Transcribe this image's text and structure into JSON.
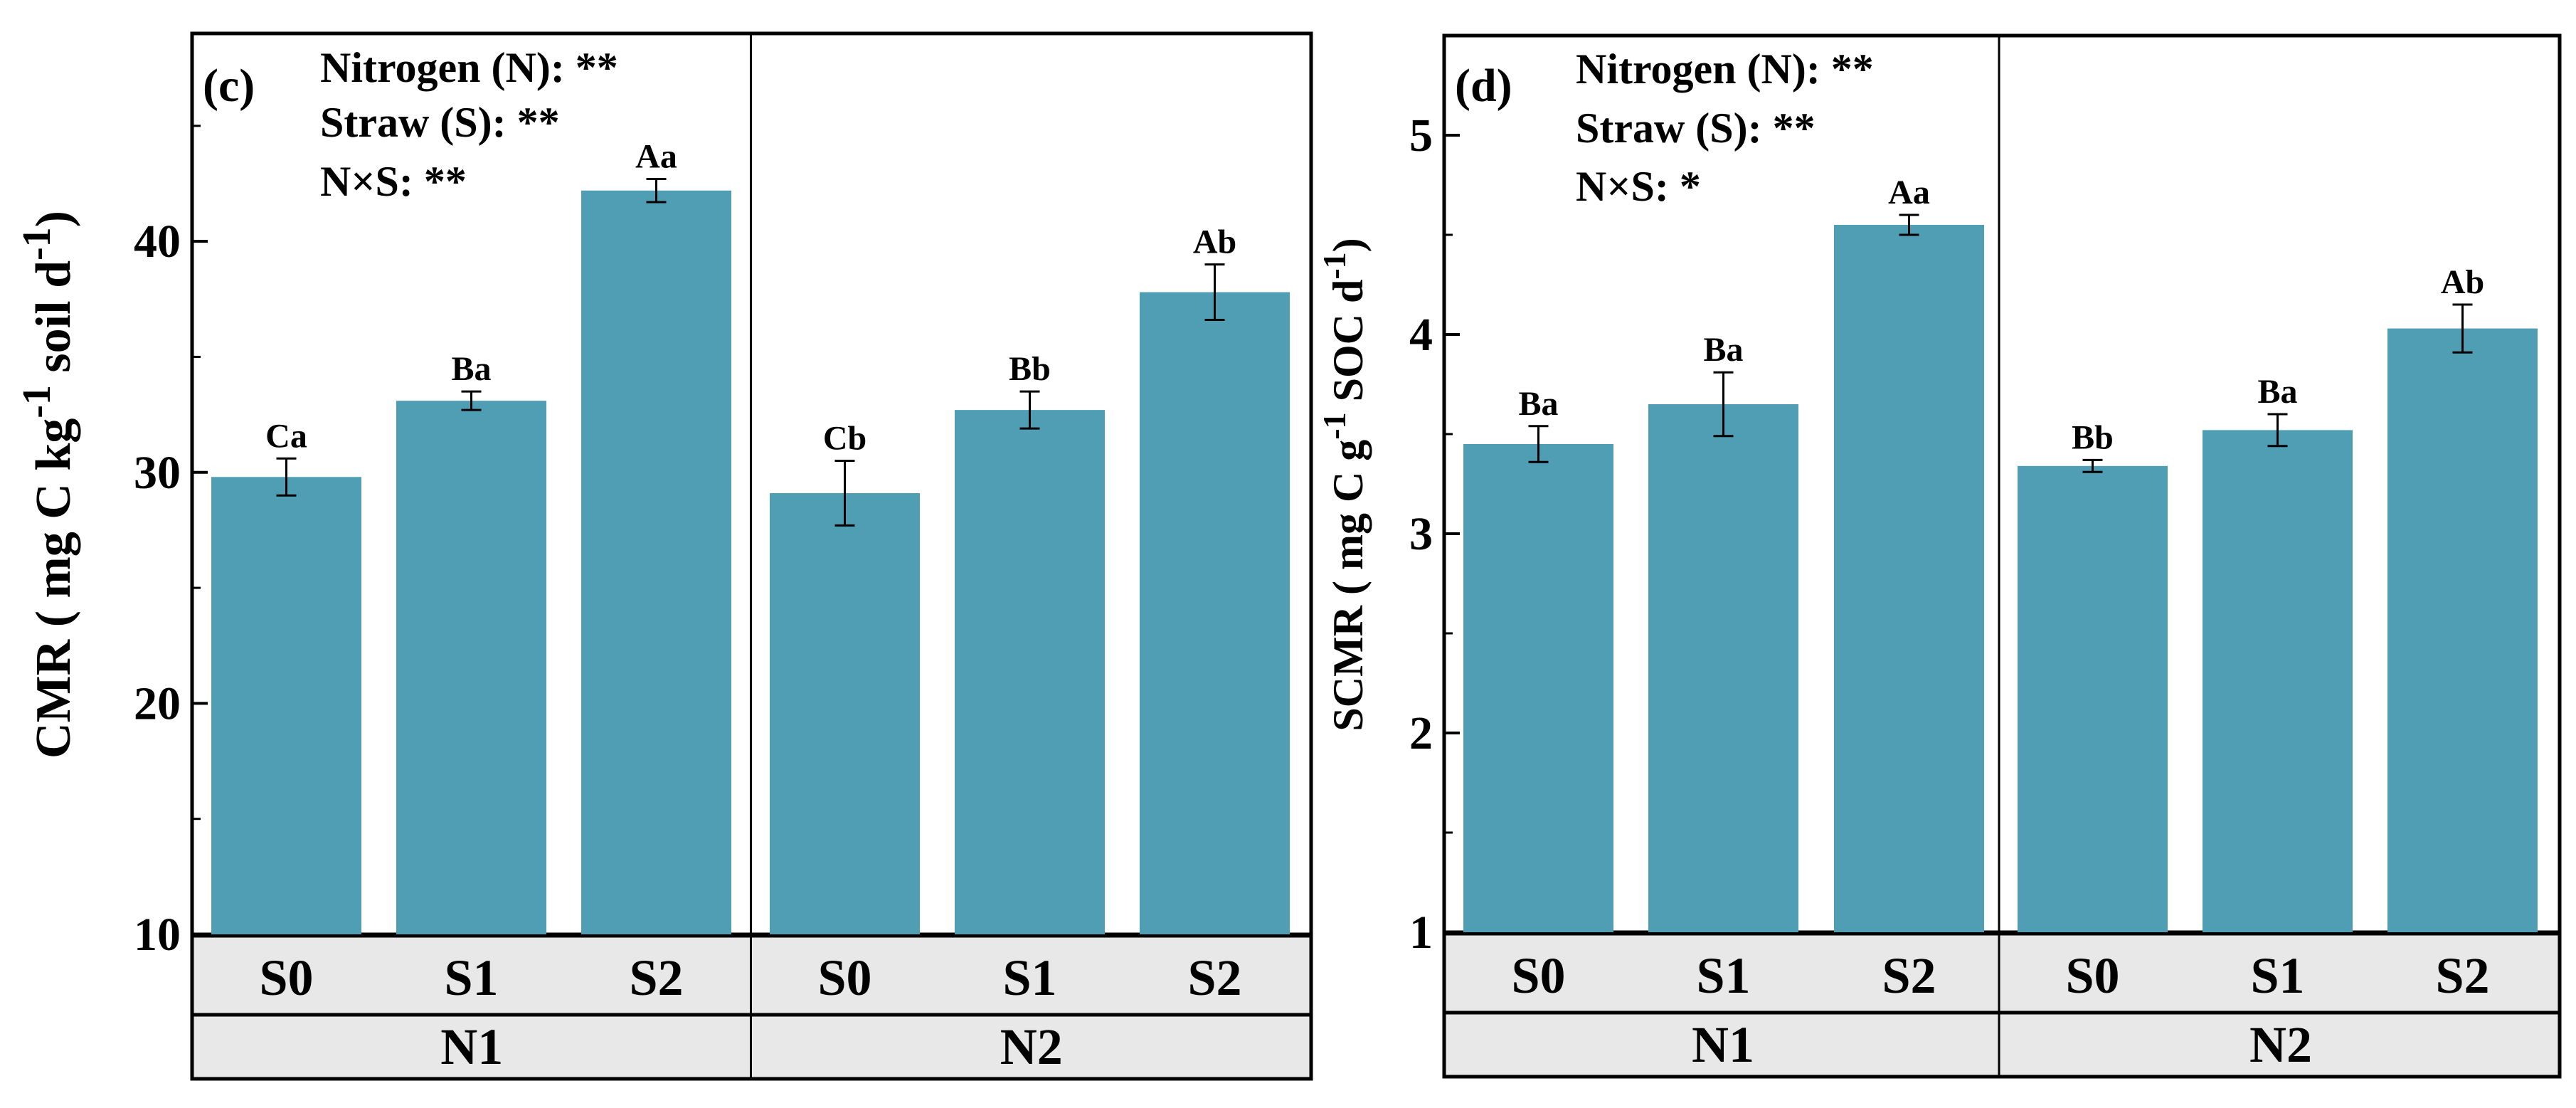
{
  "colors": {
    "bar": "#4f9eb4",
    "band": "#e8e8e8",
    "axis": "#000000"
  },
  "chart_data": [
    {
      "type": "bar",
      "panel": "(c)",
      "ylabel_main": "CMR ( mg C kg",
      "ylabel_sup1": "-1",
      "ylabel_mid": " soil d",
      "ylabel_sup2": "-1",
      "ylabel_end": ")",
      "ylim": [
        10,
        49
      ],
      "yticks": [
        10,
        20,
        30,
        40
      ],
      "stats": [
        "Nitrogen (N): **",
        "Straw (S): **",
        "N×S: **"
      ],
      "groups": [
        "N1",
        "N2"
      ],
      "categories": [
        "S0",
        "S1",
        "S2"
      ],
      "series": [
        {
          "name": "N1",
          "values": [
            29.8,
            33.1,
            42.2
          ],
          "errors": [
            0.8,
            0.4,
            0.5
          ],
          "labels": [
            "Ca",
            "Ba",
            "Aa"
          ]
        },
        {
          "name": "N2",
          "values": [
            29.1,
            32.7,
            37.8
          ],
          "errors": [
            1.4,
            0.8,
            1.2
          ],
          "labels": [
            "Cb",
            "Bb",
            "Ab"
          ]
        }
      ]
    },
    {
      "type": "bar",
      "panel": "(d)",
      "ylabel_main": "SCMR ( mg C g",
      "ylabel_sup1": "-1",
      "ylabel_mid": " SOC d",
      "ylabel_sup2": "-1",
      "ylabel_end": ")",
      "ylim": [
        1,
        5.5
      ],
      "yticks": [
        1,
        2,
        3,
        4,
        5
      ],
      "stats": [
        "Nitrogen (N): **",
        "Straw (S): **",
        "N×S: *"
      ],
      "groups": [
        "N1",
        "N2"
      ],
      "categories": [
        "S0",
        "S1",
        "S2"
      ],
      "series": [
        {
          "name": "N1",
          "values": [
            3.45,
            3.65,
            4.55
          ],
          "errors": [
            0.09,
            0.16,
            0.05
          ],
          "labels": [
            "Ba",
            "Ba",
            "Aa"
          ]
        },
        {
          "name": "N2",
          "values": [
            3.34,
            3.52,
            4.03
          ],
          "errors": [
            0.03,
            0.08,
            0.12
          ],
          "labels": [
            "Bb",
            "Ba",
            "Ab"
          ]
        }
      ]
    }
  ]
}
